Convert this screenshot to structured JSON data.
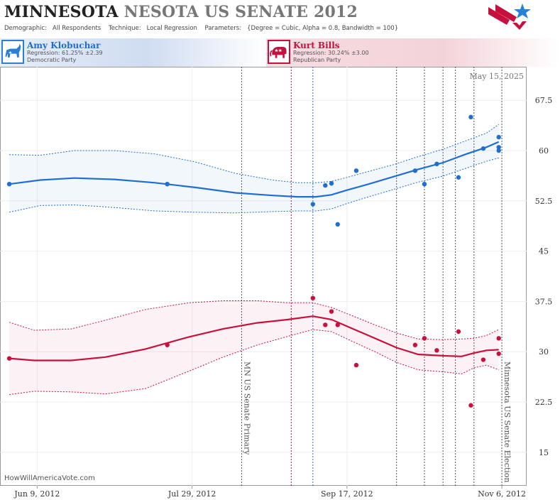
{
  "header": {
    "title_main": "MINNESOTA",
    "title_sub": "NESOTA US SENATE 2012",
    "demographic_label": "Demographic:",
    "demographic_value": "All Respondents",
    "technique_label": "Technique:",
    "technique_value": "Local Regression",
    "parameters_label": "Parameters:",
    "parameters_value": "{Degree = Cubic, Alpha = 0.8, Bandwidth = 100}"
  },
  "candidates": [
    {
      "name": "Amy Klobuchar",
      "regression": "Regression: 61.25% ±2.39",
      "party": "Democratic Party",
      "icon": "donkey-icon",
      "color": "#1f6fd0"
    },
    {
      "name": "Kurt Bills",
      "regression": "Regression: 30.24% ±3.00",
      "party": "Republican Party",
      "icon": "elephant-icon",
      "color": "#c8103e"
    }
  ],
  "credit": "HowWillAmericaVote.com",
  "chart_data": {
    "type": "line",
    "date_label": "May 15, 2025",
    "x_ticks": [
      "Jun 9, 2012",
      "Jul 29, 2012",
      "Sep 17, 2012",
      "Nov 6, 2012"
    ],
    "x_tick_dates": [
      "2012-06-09",
      "2012-07-29",
      "2012-09-17",
      "2012-11-06"
    ],
    "xlim": [
      "2012-05-28",
      "2012-11-14"
    ],
    "y_ticks": [
      15,
      22.5,
      30,
      37.5,
      45,
      52.5,
      60,
      67.5
    ],
    "ylim": [
      10,
      72.5
    ],
    "grid": true,
    "events": [
      {
        "date": "2012-08-14",
        "label": "MN US Senate Primary",
        "color": "#555555"
      },
      {
        "date": "2012-08-30",
        "label": "",
        "color": "#b0104a"
      },
      {
        "date": "2012-09-06",
        "label": "",
        "color": "#1f6fd0"
      },
      {
        "date": "2012-10-03",
        "label": "",
        "color": "#555555"
      },
      {
        "date": "2012-10-12",
        "label": "",
        "color": "#555555"
      },
      {
        "date": "2012-10-18",
        "label": "",
        "color": "#555555"
      },
      {
        "date": "2012-10-22",
        "label": "",
        "color": "#555555"
      },
      {
        "date": "2012-10-28",
        "label": "",
        "color": "#555555"
      },
      {
        "date": "2012-11-06",
        "label": "Minnesota US Senate Election",
        "color": "#555555"
      }
    ],
    "series": [
      {
        "name": "Amy Klobuchar",
        "color": "#1f6fd0",
        "fill": "rgba(31,111,208,0.06)",
        "trend": [
          [
            "2012-05-31",
            55.0
          ],
          [
            "2012-06-10",
            55.6
          ],
          [
            "2012-06-21",
            55.9
          ],
          [
            "2012-07-04",
            55.7
          ],
          [
            "2012-07-17",
            55.2
          ],
          [
            "2012-07-30",
            54.5
          ],
          [
            "2012-08-12",
            53.7
          ],
          [
            "2012-08-24",
            53.3
          ],
          [
            "2012-09-01",
            53.1
          ],
          [
            "2012-09-07",
            53.1
          ],
          [
            "2012-09-12",
            53.4
          ],
          [
            "2012-09-17",
            54.1
          ],
          [
            "2012-09-24",
            55.0
          ],
          [
            "2012-10-02",
            56.1
          ],
          [
            "2012-10-10",
            57.2
          ],
          [
            "2012-10-18",
            58.2
          ],
          [
            "2012-10-25",
            59.4
          ],
          [
            "2012-11-01",
            60.5
          ],
          [
            "2012-11-05",
            61.3
          ]
        ],
        "upper": [
          [
            "2012-05-31",
            59.4
          ],
          [
            "2012-06-10",
            59.3
          ],
          [
            "2012-06-21",
            60.0
          ],
          [
            "2012-07-04",
            60.0
          ],
          [
            "2012-07-17",
            59.5
          ],
          [
            "2012-07-30",
            58.3
          ],
          [
            "2012-08-12",
            56.6
          ],
          [
            "2012-08-24",
            55.6
          ],
          [
            "2012-09-01",
            55.2
          ],
          [
            "2012-09-07",
            55.2
          ],
          [
            "2012-09-12",
            55.4
          ],
          [
            "2012-09-17",
            56.0
          ],
          [
            "2012-09-24",
            56.9
          ],
          [
            "2012-10-02",
            57.9
          ],
          [
            "2012-10-10",
            59.1
          ],
          [
            "2012-10-18",
            60.2
          ],
          [
            "2012-10-25",
            61.4
          ],
          [
            "2012-11-01",
            62.6
          ],
          [
            "2012-11-05",
            63.9
          ]
        ],
        "lower": [
          [
            "2012-05-31",
            50.8
          ],
          [
            "2012-06-10",
            51.8
          ],
          [
            "2012-06-21",
            51.9
          ],
          [
            "2012-07-04",
            51.5
          ],
          [
            "2012-07-17",
            51.0
          ],
          [
            "2012-07-30",
            50.8
          ],
          [
            "2012-08-12",
            50.7
          ],
          [
            "2012-08-24",
            50.9
          ],
          [
            "2012-09-01",
            51.0
          ],
          [
            "2012-09-07",
            51.0
          ],
          [
            "2012-09-12",
            51.3
          ],
          [
            "2012-09-17",
            52.1
          ],
          [
            "2012-09-24",
            53.1
          ],
          [
            "2012-10-02",
            54.2
          ],
          [
            "2012-10-10",
            55.3
          ],
          [
            "2012-10-18",
            56.2
          ],
          [
            "2012-10-25",
            57.3
          ],
          [
            "2012-11-01",
            58.4
          ],
          [
            "2012-11-05",
            58.9
          ]
        ],
        "points": [
          [
            "2012-05-31",
            55.0
          ],
          [
            "2012-07-21",
            55.0
          ],
          [
            "2012-09-06",
            52.0
          ],
          [
            "2012-09-10",
            54.8
          ],
          [
            "2012-09-12",
            55.1
          ],
          [
            "2012-09-14",
            49.0
          ],
          [
            "2012-09-20",
            57.0
          ],
          [
            "2012-10-09",
            57.0
          ],
          [
            "2012-10-12",
            55.0
          ],
          [
            "2012-10-16",
            58.0
          ],
          [
            "2012-10-23",
            56.0
          ],
          [
            "2012-10-27",
            65.0
          ],
          [
            "2012-10-31",
            60.3
          ],
          [
            "2012-11-05",
            62.0
          ],
          [
            "2012-11-05",
            60.5
          ],
          [
            "2012-11-05",
            60.0
          ]
        ]
      },
      {
        "name": "Kurt Bills",
        "color": "#c8103e",
        "fill": "rgba(200,16,62,0.06)",
        "trend": [
          [
            "2012-05-31",
            29.0
          ],
          [
            "2012-06-08",
            28.7
          ],
          [
            "2012-06-20",
            28.7
          ],
          [
            "2012-07-01",
            29.2
          ],
          [
            "2012-07-14",
            30.4
          ],
          [
            "2012-07-28",
            32.2
          ],
          [
            "2012-08-08",
            33.4
          ],
          [
            "2012-08-19",
            34.3
          ],
          [
            "2012-08-29",
            34.8
          ],
          [
            "2012-09-06",
            35.3
          ],
          [
            "2012-09-12",
            34.8
          ],
          [
            "2012-09-18",
            33.6
          ],
          [
            "2012-09-26",
            32.0
          ],
          [
            "2012-10-03",
            30.6
          ],
          [
            "2012-10-10",
            29.6
          ],
          [
            "2012-10-18",
            29.4
          ],
          [
            "2012-10-24",
            29.3
          ],
          [
            "2012-10-28",
            29.8
          ],
          [
            "2012-11-01",
            30.2
          ],
          [
            "2012-11-05",
            30.3
          ]
        ],
        "upper": [
          [
            "2012-05-31",
            34.4
          ],
          [
            "2012-06-08",
            33.2
          ],
          [
            "2012-06-20",
            33.4
          ],
          [
            "2012-07-01",
            34.7
          ],
          [
            "2012-07-14",
            36.3
          ],
          [
            "2012-07-28",
            37.3
          ],
          [
            "2012-08-08",
            37.6
          ],
          [
            "2012-08-19",
            37.6
          ],
          [
            "2012-08-29",
            37.3
          ],
          [
            "2012-09-06",
            37.3
          ],
          [
            "2012-09-12",
            36.6
          ],
          [
            "2012-09-18",
            35.5
          ],
          [
            "2012-09-26",
            34.0
          ],
          [
            "2012-10-03",
            32.8
          ],
          [
            "2012-10-10",
            31.9
          ],
          [
            "2012-10-18",
            31.8
          ],
          [
            "2012-10-24",
            31.9
          ],
          [
            "2012-10-28",
            32.0
          ],
          [
            "2012-11-01",
            32.4
          ],
          [
            "2012-11-05",
            33.3
          ]
        ],
        "lower": [
          [
            "2012-05-31",
            23.6
          ],
          [
            "2012-06-08",
            24.1
          ],
          [
            "2012-06-20",
            24.0
          ],
          [
            "2012-07-01",
            23.7
          ],
          [
            "2012-07-14",
            24.5
          ],
          [
            "2012-07-28",
            27.1
          ],
          [
            "2012-08-08",
            29.2
          ],
          [
            "2012-08-19",
            31.0
          ],
          [
            "2012-08-29",
            32.3
          ],
          [
            "2012-09-06",
            33.3
          ],
          [
            "2012-09-12",
            33.0
          ],
          [
            "2012-09-18",
            31.7
          ],
          [
            "2012-09-26",
            30.0
          ],
          [
            "2012-10-03",
            28.4
          ],
          [
            "2012-10-10",
            27.3
          ],
          [
            "2012-10-18",
            27.0
          ],
          [
            "2012-10-24",
            26.7
          ],
          [
            "2012-10-28",
            27.6
          ],
          [
            "2012-11-01",
            28.0
          ],
          [
            "2012-11-05",
            27.3
          ]
        ],
        "points": [
          [
            "2012-05-31",
            29.0
          ],
          [
            "2012-07-21",
            31.0
          ],
          [
            "2012-09-06",
            38.0
          ],
          [
            "2012-09-10",
            34.0
          ],
          [
            "2012-09-12",
            36.0
          ],
          [
            "2012-09-14",
            34.0
          ],
          [
            "2012-09-20",
            28.0
          ],
          [
            "2012-10-09",
            31.0
          ],
          [
            "2012-10-12",
            32.0
          ],
          [
            "2012-10-16",
            30.2
          ],
          [
            "2012-10-23",
            33.0
          ],
          [
            "2012-10-27",
            22.0
          ],
          [
            "2012-10-31",
            28.8
          ],
          [
            "2012-11-05",
            32.0
          ],
          [
            "2012-11-05",
            29.7
          ]
        ]
      }
    ]
  }
}
